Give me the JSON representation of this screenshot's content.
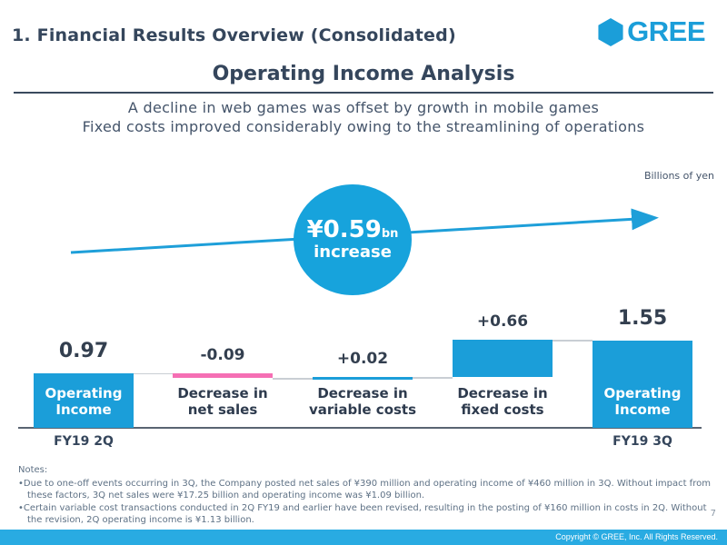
{
  "header": {
    "section_title": "1. Financial Results Overview (Consolidated)",
    "logo_text": "GREE"
  },
  "title": "Operating Income Analysis",
  "subtitle": {
    "line1": "A decline in web games was offset by growth in mobile games",
    "line2": "Fixed costs improved considerably owing to the streamlining of operations"
  },
  "unit_label": "Billions of yen",
  "highlight": {
    "amount": "¥0.59",
    "unit": "bn",
    "caption": "increase"
  },
  "chart_data": {
    "type": "bar",
    "subtype": "waterfall",
    "categories": [
      "Operating\nIncome",
      "Decrease in\nnet sales",
      "Decrease in\nvariable costs",
      "Decrease in\nfixed costs",
      "Operating\nIncome"
    ],
    "values": [
      0.97,
      -0.09,
      0.02,
      0.66,
      1.55
    ],
    "value_labels": [
      "0.97",
      "-0.09",
      "+0.02",
      "+0.66",
      "1.55"
    ],
    "bar_kinds": [
      "total",
      "negative",
      "positive",
      "positive",
      "total"
    ],
    "x_axis_labels": [
      "FY19 2Q",
      "",
      "",
      "",
      "FY19 3Q"
    ],
    "title": "Operating Income Analysis",
    "ylabel": "Billions of yen",
    "grid": false,
    "legend": false,
    "colors": {
      "positive": "#1B9ED9",
      "total": "#1B9ED9",
      "negative": "#F56FB4",
      "connector": "#C9CED4"
    }
  },
  "notes": {
    "heading": "Notes:",
    "items": [
      "Due to one-off events occurring in 3Q, the Company posted net sales of ¥390 million and operating income of ¥460 million in 3Q. Without impact from these factors, 3Q net sales were ¥17.25 billion and operating income was ¥1.09 billion.",
      "Certain variable cost transactions conducted in 2Q FY19 and earlier have been revised, resulting in the posting of ¥160 million in costs in 2Q. Without the revision, 2Q operating income is ¥1.13 billion."
    ]
  },
  "page_number": "7",
  "footer": {
    "copyright": "Copyright © GREE, Inc. All Rights Reserved."
  },
  "colors": {
    "brand_blue": "#1B9ED9",
    "circle_blue": "#17A3DC",
    "footer_blue": "#29ABE2",
    "pink": "#F56FB4",
    "dark_slate": "#35465C"
  }
}
